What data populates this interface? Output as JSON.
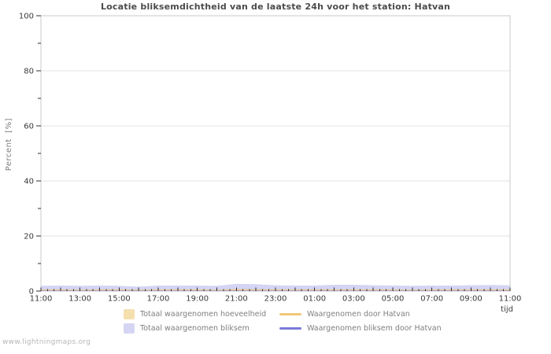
{
  "page": {
    "watermark": "www.lightningmaps.org"
  },
  "chart": {
    "title": "Locatie bliksemdichtheid van de laatste 24h voor het station: Hatvan",
    "y_axis": {
      "label": "Percent  [%]",
      "min": 0,
      "max": 100,
      "major_ticks": [
        0,
        20,
        40,
        60,
        80,
        100
      ],
      "minor_ticks": [
        10,
        30,
        50,
        70,
        90
      ]
    },
    "x_axis": {
      "label": "tijd",
      "tick_labels": [
        "11:00",
        "13:00",
        "15:00",
        "17:00",
        "19:00",
        "21:00",
        "23:00",
        "01:00",
        "03:00",
        "05:00",
        "07:00",
        "09:00",
        "11:00"
      ]
    },
    "legend": [
      {
        "swatch": "fill",
        "color": "#f6dfae",
        "label": "Totaal waargenomen hoeveelheid"
      },
      {
        "swatch": "line",
        "color": "#f2c878",
        "label": "Waargenomen door Hatvan"
      },
      {
        "swatch": "fill",
        "color": "#d5d5f3",
        "label": "Totaal waargenomen bliksem"
      },
      {
        "swatch": "line",
        "color": "#7a7ad8",
        "label": "Waargenomen bliksem door Hatvan"
      }
    ],
    "colors": {
      "grid": "#e3e3e3",
      "frame": "#c9c9c9",
      "tick": "#2e2e2e",
      "tick_text": "#383838"
    }
  },
  "chart_data": {
    "type": "area",
    "title": "Locatie bliksemdichtheid van de laatste 24h voor het station: Hatvan",
    "xlabel": "tijd",
    "ylabel": "Percent [%]",
    "ylim": [
      0,
      100
    ],
    "grid": "horizontal-major",
    "legend_position": "bottom",
    "x_hours": [
      "11:00",
      "12:00",
      "13:00",
      "14:00",
      "15:00",
      "16:00",
      "17:00",
      "18:00",
      "19:00",
      "20:00",
      "21:00",
      "22:00",
      "23:00",
      "00:00",
      "01:00",
      "02:00",
      "03:00",
      "04:00",
      "05:00",
      "06:00",
      "07:00",
      "08:00",
      "09:00",
      "10:00",
      "11:00"
    ],
    "series": [
      {
        "name": "Totaal waargenomen hoeveelheid",
        "style": "area",
        "color": "#f6dfae",
        "fill_opacity": 1,
        "values": [
          0.6,
          0.6,
          0.5,
          0.6,
          0.6,
          0.5,
          0.6,
          0.6,
          0.6,
          0.5,
          0.7,
          0.7,
          0.6,
          0.6,
          0.6,
          0.6,
          0.6,
          0.6,
          0.6,
          0.5,
          0.6,
          0.6,
          0.6,
          0.6,
          0.6
        ]
      },
      {
        "name": "Totaal waargenomen bliksem",
        "style": "area",
        "color": "#9f9fe6",
        "fill_opacity": 0.45,
        "values": [
          1.9,
          2.0,
          1.9,
          2.0,
          1.9,
          1.6,
          2.0,
          2.0,
          2.0,
          1.9,
          2.6,
          2.5,
          2.1,
          2.0,
          2.0,
          2.3,
          2.3,
          2.1,
          2.0,
          1.9,
          2.0,
          2.0,
          2.1,
          2.2,
          2.1
        ]
      },
      {
        "name": "Waargenomen door Hatvan",
        "style": "line",
        "color": "#f2c878",
        "values": [
          0.4,
          0.4,
          0.3,
          0.4,
          0.4,
          0.3,
          0.4,
          0.4,
          0.4,
          0.3,
          0.5,
          0.4,
          0.4,
          0.4,
          0.4,
          0.4,
          0.4,
          0.4,
          0.4,
          0.3,
          0.4,
          0.4,
          0.4,
          0.4,
          0.4
        ]
      },
      {
        "name": "Waargenomen bliksem door Hatvan",
        "style": "line",
        "color": "#7a7ad8",
        "values": [
          0.1,
          0.1,
          0.1,
          0.1,
          0.1,
          0.1,
          0.1,
          0.1,
          0.1,
          0.1,
          0.1,
          0.1,
          0.1,
          0.1,
          0.1,
          0.1,
          0.1,
          0.1,
          0.1,
          0.1,
          0.1,
          0.1,
          0.1,
          0.1,
          0.1
        ]
      }
    ]
  }
}
